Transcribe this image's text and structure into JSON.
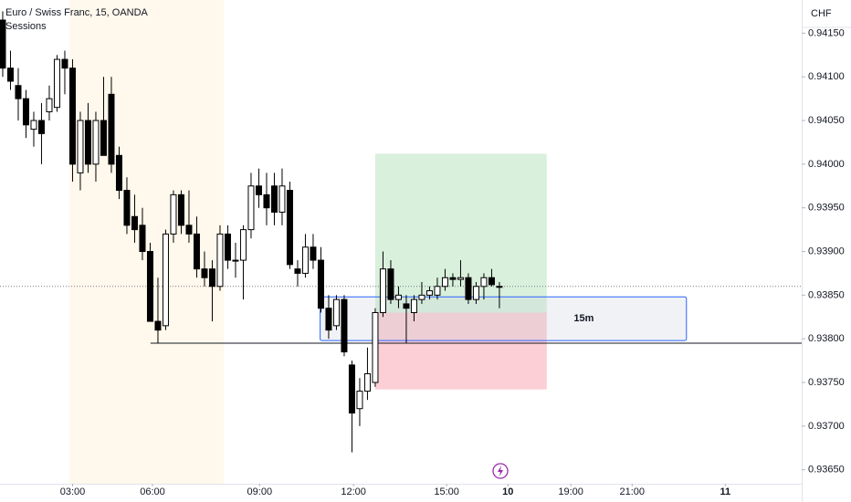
{
  "chart_data": {
    "type": "candlestick",
    "title": "Euro / Swiss Franc, 15, OANDA",
    "subtitle": "Sessions",
    "currency": "CHF",
    "ylim": [
      0.93634,
      0.94188
    ],
    "yticks": [
      {
        "value": 0.9365,
        "label": "0.93650"
      },
      {
        "value": 0.937,
        "label": "0.93700"
      },
      {
        "value": 0.9375,
        "label": "0.93750"
      },
      {
        "value": 0.938,
        "label": "0.93800"
      },
      {
        "value": 0.9385,
        "label": "0.93850"
      },
      {
        "value": 0.939,
        "label": "0.93900"
      },
      {
        "value": 0.9395,
        "label": "0.93950"
      },
      {
        "value": 0.94,
        "label": "0.94000"
      },
      {
        "value": 0.9405,
        "label": "0.94050"
      },
      {
        "value": 0.941,
        "label": "0.94100"
      },
      {
        "value": 0.9415,
        "label": "0.94150"
      }
    ],
    "xlim": [
      -0.35,
      102.95
    ],
    "xticks": [
      {
        "value": 9,
        "label": "03:00"
      },
      {
        "value": 19.3,
        "label": "06:00"
      },
      {
        "value": 33.1,
        "label": "09:00"
      },
      {
        "value": 45.2,
        "label": "12:00"
      },
      {
        "value": 57.2,
        "label": "15:00"
      },
      {
        "value": 65.1,
        "label": "10"
      },
      {
        "value": 73.2,
        "label": "19:00"
      },
      {
        "value": 81.1,
        "label": "21:00"
      },
      {
        "value": 93.1,
        "label": "11"
      }
    ],
    "up_color": "#ffffff",
    "down_color": "#000000",
    "open": [
      0.94165,
      0.9411,
      0.9409,
      0.94075,
      0.9404,
      0.9405,
      0.9406,
      0.94065,
      0.9412,
      0.9411,
      0.9399,
      0.9405,
      0.94,
      0.9405,
      0.9408,
      0.9401,
      0.9397,
      0.9394,
      0.9393,
      0.939,
      0.9382,
      0.93815,
      0.9392,
      0.93965,
      0.9393,
      0.9392,
      0.9388,
      0.9388,
      0.9386,
      0.9392,
      0.9389,
      0.9389,
      0.93925,
      0.93975,
      0.93965,
      0.93975,
      0.93945,
      0.9397,
      0.9388,
      0.93875,
      0.93905,
      0.9389,
      0.93835,
      0.93815,
      0.93845,
      0.9377,
      0.9372,
      0.9374,
      0.9375,
      0.9383,
      0.9388,
      0.93845,
      0.9384,
      0.9383,
      0.93845,
      0.9385,
      0.9385,
      0.9386,
      0.9387,
      0.93868,
      0.9387,
      0.93845,
      0.9386,
      0.9387,
      0.9386
    ],
    "high": [
      0.94175,
      0.9413,
      0.9411,
      0.94085,
      0.9406,
      0.9407,
      0.9409,
      0.94125,
      0.9413,
      0.9412,
      0.9406,
      0.9407,
      0.9406,
      0.941,
      0.941,
      0.9402,
      0.93985,
      0.93965,
      0.9395,
      0.9391,
      0.9387,
      0.93925,
      0.9397,
      0.9397,
      0.9397,
      0.9394,
      0.939,
      0.9389,
      0.9393,
      0.9393,
      0.9391,
      0.9393,
      0.9399,
      0.93995,
      0.9399,
      0.9399,
      0.93995,
      0.9398,
      0.9389,
      0.9392,
      0.9392,
      0.93905,
      0.9385,
      0.9385,
      0.9385,
      0.93775,
      0.93755,
      0.9379,
      0.93835,
      0.939,
      0.9389,
      0.9386,
      0.9385,
      0.9385,
      0.93865,
      0.9386,
      0.9387,
      0.9388,
      0.93875,
      0.9389,
      0.93875,
      0.93865,
      0.93875,
      0.9388,
      0.93865
    ],
    "low": [
      0.941,
      0.94085,
      0.9405,
      0.9403,
      0.9402,
      0.94,
      0.9405,
      0.9406,
      0.9408,
      0.9398,
      0.9397,
      0.9399,
      0.9398,
      0.9401,
      0.9399,
      0.9396,
      0.9392,
      0.9391,
      0.9389,
      0.9382,
      0.93795,
      0.9381,
      0.9391,
      0.9392,
      0.9391,
      0.9387,
      0.9386,
      0.9382,
      0.93855,
      0.9388,
      0.9387,
      0.93845,
      0.93915,
      0.9395,
      0.9393,
      0.9393,
      0.9393,
      0.9388,
      0.9386,
      0.9387,
      0.9388,
      0.9383,
      0.938,
      0.9381,
      0.9378,
      0.9367,
      0.937,
      0.9373,
      0.93745,
      0.93825,
      0.9384,
      0.93835,
      0.93795,
      0.9382,
      0.9384,
      0.93845,
      0.93845,
      0.93855,
      0.9386,
      0.9386,
      0.9384,
      0.9384,
      0.93845,
      0.9386,
      0.93835
    ],
    "close": [
      0.9411,
      0.94095,
      0.94075,
      0.94045,
      0.9405,
      0.94035,
      0.94075,
      0.9412,
      0.9411,
      0.94,
      0.9405,
      0.94,
      0.9405,
      0.9401,
      0.94,
      0.9397,
      0.9393,
      0.93925,
      0.939,
      0.9382,
      0.9381,
      0.9392,
      0.93965,
      0.9393,
      0.9392,
      0.9388,
      0.9387,
      0.9386,
      0.9392,
      0.9389,
      0.9389,
      0.93925,
      0.93975,
      0.93965,
      0.9395,
      0.93945,
      0.93975,
      0.93885,
      0.93875,
      0.93905,
      0.9389,
      0.93835,
      0.9381,
      0.93845,
      0.93785,
      0.93715,
      0.9374,
      0.9376,
      0.9383,
      0.9388,
      0.93845,
      0.9385,
      0.93835,
      0.93845,
      0.9385,
      0.93855,
      0.9386,
      0.9387,
      0.93868,
      0.9387,
      0.93845,
      0.9386,
      0.9387,
      0.93862,
      0.9386
    ],
    "session": {
      "xlim": [
        8.6,
        28.5
      ],
      "color": "#fff8ec"
    },
    "long_position": {
      "xlim": [
        48,
        70.1
      ],
      "entry": 0.9383,
      "target": 0.94012,
      "stop": 0.93742,
      "profit_color": "#d9f0dc",
      "loss_color": "#fbcfd5"
    },
    "range_box": {
      "label": "15m",
      "xlim": [
        40.9,
        88.1
      ],
      "ylim": [
        0.93798,
        0.93848
      ],
      "color": "#2962ff"
    },
    "level_line": {
      "value": 0.93795,
      "x_start": 19.05
    },
    "last_price": 0.9386
  }
}
